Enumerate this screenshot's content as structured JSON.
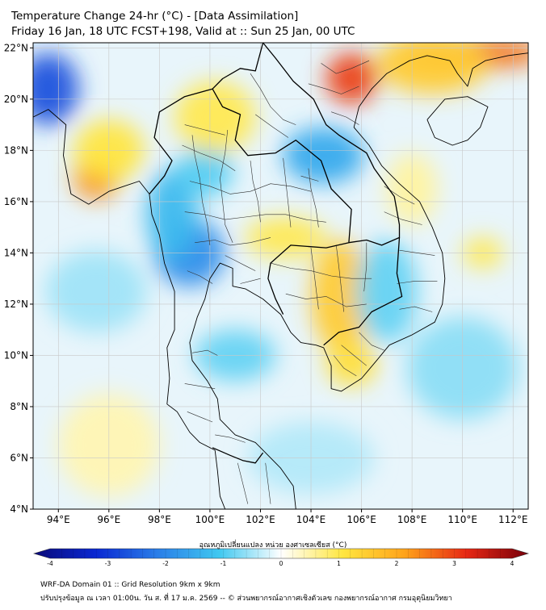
{
  "title": {
    "line1": "Temperature Change 24-hr (°C) - [Data Assimilation]",
    "line2": "Friday 16 Jan, 18 UTC FCST+198, Valid at :: Sun 25 Jan, 00 UTC"
  },
  "axes": {
    "lat_labels": [
      "22°N",
      "20°N",
      "18°N",
      "16°N",
      "14°N",
      "12°N",
      "10°N",
      "8°N",
      "6°N",
      "4°N"
    ],
    "lon_labels": [
      "94°E",
      "96°E",
      "98°E",
      "100°E",
      "102°E",
      "104°E",
      "106°E",
      "108°E",
      "110°E",
      "112°E"
    ],
    "lat_range": [
      4,
      22.2
    ],
    "lon_range": [
      93,
      112.6
    ]
  },
  "colorbar": {
    "title": "อุณหภูมิเปลี่ยนแปลง หน่วย องศาเซลเซียส (°C)",
    "ticks": [
      "-4",
      "-3",
      "-2",
      "-1",
      "0",
      "1",
      "2",
      "3",
      "4"
    ],
    "range": [
      -4,
      4
    ]
  },
  "field_blobs": [
    {
      "lon": 93.6,
      "lat": 20.4,
      "value": -2.5,
      "rlon": 1.2,
      "rlat": 1.4
    },
    {
      "lon": 95.5,
      "lat": 16.9,
      "value": 2.2,
      "rlon": 0.9,
      "rlat": 0.8
    },
    {
      "lon": 96.0,
      "lat": 18.0,
      "value": 1.0,
      "rlon": 1.4,
      "rlat": 1.2
    },
    {
      "lon": 99.2,
      "lat": 14.0,
      "value": -1.8,
      "rlon": 1.4,
      "rlat": 1.3
    },
    {
      "lon": 98.5,
      "lat": 15.5,
      "value": -1.2,
      "rlon": 1.0,
      "rlat": 1.8
    },
    {
      "lon": 99.8,
      "lat": 17.2,
      "value": -0.9,
      "rlon": 1.1,
      "rlat": 1.0
    },
    {
      "lon": 100.2,
      "lat": 19.3,
      "value": 0.9,
      "rlon": 1.6,
      "rlat": 1.4
    },
    {
      "lon": 104.5,
      "lat": 17.8,
      "value": -1.4,
      "rlon": 1.6,
      "rlat": 1.1
    },
    {
      "lon": 103.0,
      "lat": 14.6,
      "value": 0.9,
      "rlon": 1.6,
      "rlat": 0.8
    },
    {
      "lon": 105.2,
      "lat": 12.3,
      "value": 1.4,
      "rlon": 1.2,
      "rlat": 2.2
    },
    {
      "lon": 105.6,
      "lat": 9.7,
      "value": 1.1,
      "rlon": 1.0,
      "rlat": 0.9
    },
    {
      "lon": 105.6,
      "lat": 20.8,
      "value": 2.8,
      "rlon": 1.0,
      "rlat": 1.0
    },
    {
      "lon": 110.5,
      "lat": 21.8,
      "value": 2.4,
      "rlon": 2.8,
      "rlat": 0.6
    },
    {
      "lon": 108.8,
      "lat": 21.4,
      "value": 1.4,
      "rlon": 2.2,
      "rlat": 1.2
    },
    {
      "lon": 108.0,
      "lat": 16.5,
      "value": 0.5,
      "rlon": 1.0,
      "rlat": 1.4
    },
    {
      "lon": 110.8,
      "lat": 14.0,
      "value": 0.9,
      "rlon": 0.8,
      "rlat": 0.6
    },
    {
      "lon": 101.0,
      "lat": 10.0,
      "value": -0.8,
      "rlon": 1.6,
      "rlat": 1.0
    },
    {
      "lon": 107.0,
      "lat": 12.5,
      "value": -0.8,
      "rlon": 1.2,
      "rlat": 2.0
    },
    {
      "lon": 95.5,
      "lat": 12.5,
      "value": -0.5,
      "rlon": 2.0,
      "rlat": 1.6
    },
    {
      "lon": 110.0,
      "lat": 9.5,
      "value": -0.6,
      "rlon": 2.2,
      "rlat": 2.0
    },
    {
      "lon": 104.0,
      "lat": 6.0,
      "value": -0.4,
      "rlon": 2.5,
      "rlat": 1.4
    },
    {
      "lon": 96.0,
      "lat": 6.5,
      "value": 0.4,
      "rlon": 2.0,
      "rlat": 2.0
    }
  ],
  "footer": {
    "line1": "WRF-DA Domain 01 :: Grid Resolution 9km x 9km",
    "line2": "ปรับปรุงข้อมูล ณ เวลา 01:00น. วัน ส. ที่ 17 ม.ค. 2569 -- © ส่วนพยากรณ์อากาศเชิงตัวเลข กองพยากรณ์อากาศ กรมอุตุนิยมวิทยา"
  },
  "coastlines": [
    [
      [
        93.0,
        19.3
      ],
      [
        93.6,
        19.6
      ],
      [
        94.3,
        19.0
      ],
      [
        94.2,
        17.8
      ],
      [
        94.5,
        16.3
      ],
      [
        95.2,
        15.9
      ],
      [
        96.0,
        16.4
      ],
      [
        96.6,
        16.6
      ],
      [
        97.2,
        16.8
      ],
      [
        97.6,
        16.3
      ],
      [
        97.7,
        15.5
      ],
      [
        98.0,
        14.7
      ],
      [
        98.2,
        13.6
      ],
      [
        98.6,
        12.5
      ],
      [
        98.6,
        11.0
      ],
      [
        98.3,
        10.3
      ],
      [
        98.4,
        9.1
      ],
      [
        98.3,
        8.1
      ],
      [
        98.7,
        7.8
      ],
      [
        99.2,
        7.0
      ],
      [
        99.6,
        6.6
      ],
      [
        100.2,
        6.3
      ],
      [
        100.3,
        5.5
      ],
      [
        100.4,
        4.5
      ],
      [
        100.6,
        4.0
      ]
    ],
    [
      [
        103.4,
        4.0
      ],
      [
        103.3,
        4.9
      ],
      [
        102.8,
        5.6
      ],
      [
        102.2,
        6.2
      ],
      [
        101.8,
        6.6
      ],
      [
        101.0,
        6.9
      ],
      [
        100.4,
        7.5
      ],
      [
        100.3,
        8.3
      ],
      [
        99.9,
        9.0
      ],
      [
        99.3,
        9.8
      ],
      [
        99.2,
        10.5
      ],
      [
        99.5,
        11.5
      ],
      [
        99.8,
        12.2
      ],
      [
        100.0,
        13.0
      ],
      [
        100.4,
        13.6
      ],
      [
        100.9,
        13.4
      ],
      [
        100.9,
        12.7
      ],
      [
        101.4,
        12.6
      ],
      [
        102.1,
        12.2
      ],
      [
        102.8,
        11.6
      ],
      [
        103.2,
        10.9
      ],
      [
        103.6,
        10.5
      ],
      [
        104.2,
        10.4
      ],
      [
        104.5,
        10.3
      ],
      [
        104.8,
        9.6
      ],
      [
        104.8,
        8.7
      ],
      [
        105.2,
        8.6
      ],
      [
        106.0,
        9.1
      ],
      [
        106.6,
        9.8
      ],
      [
        107.1,
        10.4
      ],
      [
        108.0,
        10.8
      ],
      [
        108.9,
        11.3
      ],
      [
        109.2,
        12.0
      ],
      [
        109.3,
        13.0
      ],
      [
        109.2,
        14.0
      ],
      [
        108.8,
        15.0
      ],
      [
        108.3,
        16.0
      ],
      [
        107.5,
        16.7
      ],
      [
        106.8,
        17.4
      ],
      [
        106.3,
        18.2
      ],
      [
        105.7,
        18.9
      ],
      [
        105.9,
        19.7
      ],
      [
        106.4,
        20.4
      ],
      [
        107.0,
        21.0
      ],
      [
        107.9,
        21.5
      ],
      [
        108.6,
        21.7
      ],
      [
        109.5,
        21.5
      ],
      [
        109.8,
        21.0
      ],
      [
        110.2,
        20.5
      ],
      [
        110.4,
        21.2
      ],
      [
        110.9,
        21.5
      ],
      [
        111.8,
        21.7
      ],
      [
        112.6,
        21.8
      ]
    ],
    [
      [
        108.6,
        19.2
      ],
      [
        109.3,
        20.0
      ],
      [
        110.2,
        20.1
      ],
      [
        111.0,
        19.7
      ],
      [
        110.7,
        18.9
      ],
      [
        110.2,
        18.4
      ],
      [
        109.6,
        18.2
      ],
      [
        108.9,
        18.5
      ],
      [
        108.6,
        19.2
      ]
    ]
  ],
  "borders": [
    [
      [
        97.6,
        16.3
      ],
      [
        98.2,
        17.0
      ],
      [
        98.5,
        17.6
      ],
      [
        97.8,
        18.5
      ],
      [
        98.0,
        19.5
      ],
      [
        99.0,
        20.1
      ],
      [
        100.1,
        20.4
      ]
    ],
    [
      [
        100.1,
        20.4
      ],
      [
        100.5,
        19.7
      ],
      [
        101.2,
        19.4
      ],
      [
        101.0,
        18.4
      ],
      [
        101.5,
        17.8
      ],
      [
        102.6,
        17.9
      ],
      [
        103.4,
        18.4
      ],
      [
        104.4,
        17.6
      ],
      [
        104.8,
        16.5
      ],
      [
        105.6,
        15.7
      ],
      [
        105.5,
        14.4
      ]
    ],
    [
      [
        105.5,
        14.4
      ],
      [
        104.6,
        14.2
      ],
      [
        103.2,
        14.3
      ],
      [
        102.4,
        13.6
      ],
      [
        102.3,
        13.0
      ],
      [
        102.6,
        12.2
      ],
      [
        102.9,
        11.6
      ]
    ],
    [
      [
        105.5,
        14.4
      ],
      [
        106.2,
        14.5
      ],
      [
        106.8,
        14.3
      ],
      [
        107.5,
        14.6
      ],
      [
        107.4,
        13.2
      ],
      [
        107.6,
        12.3
      ],
      [
        106.4,
        11.7
      ],
      [
        105.9,
        11.1
      ],
      [
        105.1,
        10.9
      ],
      [
        104.5,
        10.4
      ]
    ],
    [
      [
        100.1,
        20.4
      ],
      [
        100.5,
        20.8
      ],
      [
        101.2,
        21.2
      ],
      [
        101.8,
        21.1
      ],
      [
        102.1,
        22.2
      ]
    ],
    [
      [
        102.1,
        22.2
      ],
      [
        102.6,
        21.6
      ],
      [
        103.3,
        20.7
      ],
      [
        104.1,
        20.0
      ],
      [
        104.6,
        19.0
      ],
      [
        105.1,
        18.6
      ],
      [
        106.2,
        17.9
      ],
      [
        106.5,
        17.3
      ],
      [
        107.3,
        16.2
      ],
      [
        107.5,
        15.1
      ],
      [
        107.5,
        14.6
      ]
    ],
    [
      [
        100.1,
        6.4
      ],
      [
        100.8,
        6.1
      ],
      [
        101.3,
        5.9
      ],
      [
        101.8,
        5.8
      ],
      [
        102.1,
        6.2
      ]
    ]
  ],
  "admin_lines": [
    [
      [
        99.0,
        19.0
      ],
      [
        99.8,
        18.8
      ],
      [
        100.6,
        18.6
      ]
    ],
    [
      [
        98.9,
        18.2
      ],
      [
        99.6,
        17.9
      ],
      [
        100.4,
        17.6
      ],
      [
        101.0,
        17.2
      ]
    ],
    [
      [
        99.2,
        16.8
      ],
      [
        100.0,
        16.6
      ],
      [
        100.8,
        16.3
      ],
      [
        101.6,
        16.4
      ],
      [
        102.4,
        16.7
      ],
      [
        103.2,
        16.6
      ],
      [
        104.0,
        16.4
      ]
    ],
    [
      [
        99.0,
        15.6
      ],
      [
        99.8,
        15.5
      ],
      [
        100.6,
        15.3
      ],
      [
        101.4,
        15.4
      ],
      [
        102.2,
        15.5
      ],
      [
        103.0,
        15.5
      ],
      [
        103.8,
        15.3
      ],
      [
        104.6,
        15.2
      ]
    ],
    [
      [
        99.4,
        14.4
      ],
      [
        100.2,
        14.5
      ],
      [
        100.8,
        14.3
      ],
      [
        101.6,
        14.4
      ],
      [
        102.4,
        14.6
      ]
    ],
    [
      [
        99.1,
        13.3
      ],
      [
        99.6,
        13.1
      ],
      [
        100.1,
        12.8
      ]
    ],
    [
      [
        99.3,
        18.6
      ],
      [
        99.4,
        17.8
      ],
      [
        99.6,
        16.9
      ],
      [
        99.7,
        16.0
      ],
      [
        99.9,
        15.1
      ],
      [
        100.0,
        14.3
      ]
    ],
    [
      [
        100.7,
        18.8
      ],
      [
        100.6,
        17.9
      ],
      [
        100.4,
        16.9
      ],
      [
        100.5,
        16.0
      ],
      [
        100.6,
        15.1
      ],
      [
        100.9,
        14.4
      ]
    ],
    [
      [
        101.6,
        17.6
      ],
      [
        101.7,
        16.8
      ],
      [
        101.9,
        16.0
      ],
      [
        102.0,
        15.2
      ]
    ],
    [
      [
        102.9,
        17.7
      ],
      [
        103.0,
        16.8
      ],
      [
        103.1,
        15.9
      ],
      [
        103.2,
        15.0
      ]
    ],
    [
      [
        103.9,
        17.3
      ],
      [
        104.0,
        16.5
      ],
      [
        104.2,
        15.7
      ],
      [
        104.3,
        15.0
      ]
    ],
    [
      [
        101.6,
        21.0
      ],
      [
        102.0,
        20.4
      ],
      [
        102.4,
        19.7
      ],
      [
        102.9,
        19.2
      ],
      [
        103.4,
        19.0
      ]
    ],
    [
      [
        101.8,
        19.4
      ],
      [
        102.5,
        18.9
      ],
      [
        103.1,
        18.5
      ]
    ],
    [
      [
        103.6,
        17.0
      ],
      [
        104.3,
        16.8
      ]
    ],
    [
      [
        102.4,
        13.6
      ],
      [
        103.2,
        13.4
      ],
      [
        104.0,
        13.3
      ],
      [
        104.8,
        13.1
      ],
      [
        105.6,
        13.0
      ],
      [
        106.4,
        13.0
      ]
    ],
    [
      [
        103.0,
        12.4
      ],
      [
        103.8,
        12.2
      ],
      [
        104.6,
        12.3
      ],
      [
        105.4,
        11.9
      ],
      [
        106.2,
        12.0
      ]
    ],
    [
      [
        104.0,
        14.2
      ],
      [
        104.1,
        13.4
      ],
      [
        104.2,
        12.6
      ],
      [
        104.3,
        11.8
      ]
    ],
    [
      [
        105.0,
        14.3
      ],
      [
        105.1,
        13.5
      ],
      [
        105.2,
        12.6
      ],
      [
        105.3,
        11.7
      ]
    ],
    [
      [
        106.2,
        14.4
      ],
      [
        106.2,
        13.5
      ],
      [
        106.1,
        12.5
      ]
    ],
    [
      [
        106.9,
        16.6
      ],
      [
        107.5,
        16.2
      ],
      [
        108.1,
        15.9
      ]
    ],
    [
      [
        106.9,
        15.6
      ],
      [
        107.6,
        15.3
      ],
      [
        108.4,
        15.1
      ]
    ],
    [
      [
        107.5,
        14.1
      ],
      [
        108.2,
        14.0
      ],
      [
        108.9,
        13.9
      ]
    ],
    [
      [
        107.4,
        12.8
      ],
      [
        108.1,
        12.9
      ],
      [
        109.0,
        12.9
      ]
    ],
    [
      [
        107.5,
        11.8
      ],
      [
        108.1,
        11.9
      ],
      [
        108.8,
        11.7
      ]
    ],
    [
      [
        105.9,
        10.9
      ],
      [
        106.4,
        10.4
      ],
      [
        106.9,
        10.2
      ]
    ],
    [
      [
        105.2,
        10.4
      ],
      [
        105.7,
        10.0
      ],
      [
        106.2,
        9.6
      ]
    ],
    [
      [
        104.9,
        10.0
      ],
      [
        105.3,
        9.5
      ],
      [
        105.8,
        9.2
      ]
    ],
    [
      [
        103.9,
        20.6
      ],
      [
        104.6,
        20.4
      ],
      [
        105.2,
        20.2
      ],
      [
        105.9,
        20.5
      ]
    ],
    [
      [
        104.4,
        21.4
      ],
      [
        105.0,
        21.0
      ],
      [
        105.6,
        21.2
      ],
      [
        106.3,
        21.5
      ]
    ],
    [
      [
        104.8,
        19.5
      ],
      [
        105.4,
        19.3
      ],
      [
        105.9,
        19.0
      ]
    ],
    [
      [
        99.3,
        10.1
      ],
      [
        99.9,
        10.2
      ],
      [
        100.3,
        10.0
      ]
    ],
    [
      [
        99.0,
        8.9
      ],
      [
        99.6,
        8.8
      ],
      [
        100.2,
        8.7
      ]
    ],
    [
      [
        99.1,
        7.8
      ],
      [
        99.6,
        7.6
      ],
      [
        100.1,
        7.4
      ]
    ],
    [
      [
        100.2,
        6.9
      ],
      [
        100.8,
        6.8
      ],
      [
        101.4,
        6.6
      ]
    ],
    [
      [
        101.1,
        5.8
      ],
      [
        101.3,
        5.0
      ],
      [
        101.5,
        4.2
      ]
    ],
    [
      [
        102.2,
        5.8
      ],
      [
        102.3,
        5.0
      ],
      [
        102.4,
        4.2
      ]
    ],
    [
      [
        100.6,
        13.9
      ],
      [
        101.0,
        13.7
      ],
      [
        101.4,
        13.5
      ],
      [
        101.8,
        13.3
      ]
    ],
    [
      [
        101.2,
        12.8
      ],
      [
        101.6,
        12.9
      ],
      [
        102.0,
        13.0
      ]
    ]
  ]
}
